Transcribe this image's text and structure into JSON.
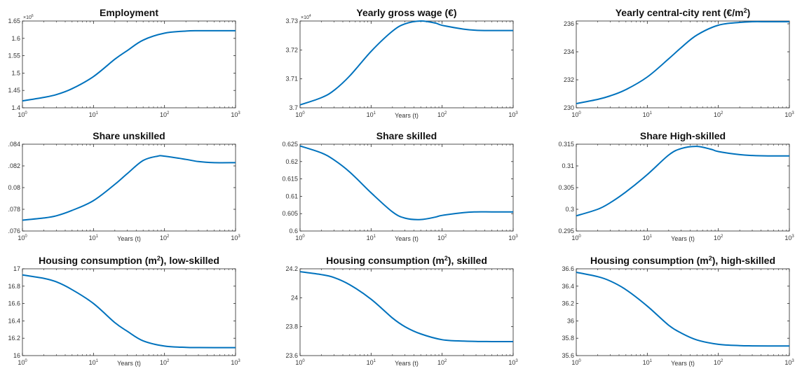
{
  "chart_data": [
    {
      "type": "line",
      "title": "Employment",
      "title_sup": "",
      "title_post": "",
      "xlabel": "",
      "x_scale": "log",
      "xlim": [
        1,
        1000
      ],
      "x_ticks": [
        1,
        10,
        100,
        1000
      ],
      "x_tick_labels": [
        [
          "10",
          "0"
        ],
        [
          "10",
          "1"
        ],
        [
          "10",
          "2"
        ],
        [
          "10",
          "3"
        ]
      ],
      "ylim": [
        1.4,
        1.65
      ],
      "y_ticks": [
        1.4,
        1.45,
        1.5,
        1.55,
        1.6,
        1.65
      ],
      "y_tick_labels": [
        "1.4",
        "1.45",
        "1.5",
        "1.55",
        "1.6",
        "1.65"
      ],
      "y_multiplier": "×10",
      "y_multiplier_exp": "6",
      "color": "#0072BD",
      "x": [
        1,
        2,
        3,
        5,
        10,
        20,
        30,
        50,
        100,
        200,
        300,
        500,
        1000
      ],
      "y": [
        1.42,
        1.43,
        1.438,
        1.455,
        1.49,
        1.54,
        1.565,
        1.595,
        1.615,
        1.621,
        1.622,
        1.622,
        1.622
      ]
    },
    {
      "type": "line",
      "title": "Yearly gross wage (€)",
      "title_sup": "",
      "title_post": "",
      "xlabel": "Years (t)",
      "x_scale": "log",
      "xlim": [
        1,
        1000
      ],
      "x_ticks": [
        1,
        10,
        100,
        1000
      ],
      "x_tick_labels": [
        [
          "10",
          "0"
        ],
        [
          "10",
          "1"
        ],
        [
          "10",
          "2"
        ],
        [
          "10",
          "3"
        ]
      ],
      "ylim": [
        3.7,
        3.73
      ],
      "y_ticks": [
        3.7,
        3.71,
        3.72,
        3.73
      ],
      "y_tick_labels": [
        "3.7",
        "3.71",
        "3.72",
        "3.73"
      ],
      "y_multiplier": "×10",
      "y_multiplier_exp": "4",
      "color": "#0072BD",
      "x": [
        1,
        2,
        3,
        5,
        10,
        20,
        30,
        50,
        80,
        100,
        200,
        300,
        500,
        1000
      ],
      "y": [
        3.701,
        3.7035,
        3.706,
        3.711,
        3.7195,
        3.7265,
        3.729,
        3.73,
        3.7293,
        3.7285,
        3.7272,
        3.7268,
        3.7267,
        3.7267
      ]
    },
    {
      "type": "line",
      "title": "Yearly central-city rent (€/m",
      "title_sup": "2",
      "title_post": ")",
      "xlabel": "",
      "x_scale": "log",
      "xlim": [
        1,
        1000
      ],
      "x_ticks": [
        1,
        10,
        100,
        1000
      ],
      "x_tick_labels": [
        [
          "10",
          "0"
        ],
        [
          "10",
          "1"
        ],
        [
          "10",
          "2"
        ],
        [
          "10",
          "3"
        ]
      ],
      "ylim": [
        230,
        236.2
      ],
      "y_ticks": [
        230,
        232,
        234,
        236
      ],
      "y_tick_labels": [
        "230",
        "232",
        "234",
        "236"
      ],
      "y_multiplier": "",
      "y_multiplier_exp": "",
      "color": "#0072BD",
      "x": [
        1,
        2,
        3,
        5,
        10,
        20,
        30,
        50,
        100,
        200,
        300,
        500,
        1000
      ],
      "y": [
        230.3,
        230.6,
        230.85,
        231.3,
        232.2,
        233.5,
        234.3,
        235.2,
        235.9,
        236.1,
        236.15,
        236.15,
        236.15
      ]
    },
    {
      "type": "line",
      "title": "Share unskilled",
      "title_sup": "",
      "title_post": "",
      "xlabel": "Years (t)",
      "x_scale": "log",
      "xlim": [
        1,
        1000
      ],
      "x_ticks": [
        1,
        10,
        100,
        1000
      ],
      "x_tick_labels": [
        [
          "10",
          "0"
        ],
        [
          "10",
          "1"
        ],
        [
          "10",
          "2"
        ],
        [
          "10",
          "3"
        ]
      ],
      "ylim": [
        0.076,
        0.084
      ],
      "y_ticks": [
        0.076,
        0.078,
        0.08,
        0.082,
        0.084
      ],
      "y_tick_labels": [
        ".076",
        ".078",
        "0.08",
        ".082",
        ".084"
      ],
      "y_multiplier": "",
      "y_multiplier_exp": "",
      "color": "#0072BD",
      "x": [
        1,
        2,
        3,
        5,
        10,
        20,
        30,
        50,
        80,
        100,
        200,
        300,
        500,
        1000
      ],
      "y": [
        0.077,
        0.0772,
        0.0774,
        0.0779,
        0.0788,
        0.0803,
        0.0813,
        0.0825,
        0.0829,
        0.0829,
        0.0826,
        0.0824,
        0.0823,
        0.0823
      ]
    },
    {
      "type": "line",
      "title": "Share skilled",
      "title_sup": "",
      "title_post": "",
      "xlabel": "Years (t)",
      "x_scale": "log",
      "xlim": [
        1,
        1000
      ],
      "x_ticks": [
        1,
        10,
        100,
        1000
      ],
      "x_tick_labels": [
        [
          "10",
          "0"
        ],
        [
          "10",
          "1"
        ],
        [
          "10",
          "2"
        ],
        [
          "10",
          "3"
        ]
      ],
      "ylim": [
        0.6,
        0.625
      ],
      "y_ticks": [
        0.6,
        0.605,
        0.61,
        0.615,
        0.62,
        0.625
      ],
      "y_tick_labels": [
        "0.6",
        "0.605",
        "0.61",
        "0.615",
        "0.62",
        "0.625"
      ],
      "y_multiplier": "",
      "y_multiplier_exp": "",
      "color": "#0072BD",
      "x": [
        1,
        2,
        3,
        5,
        10,
        20,
        30,
        50,
        80,
        100,
        200,
        300,
        500,
        1000
      ],
      "y": [
        0.6245,
        0.6225,
        0.6205,
        0.617,
        0.611,
        0.6055,
        0.6037,
        0.6033,
        0.604,
        0.6045,
        0.6053,
        0.6055,
        0.6055,
        0.6055
      ]
    },
    {
      "type": "line",
      "title": "Share High-skilled",
      "title_sup": "",
      "title_post": "",
      "xlabel": "Years (t)",
      "x_scale": "log",
      "xlim": [
        1,
        1000
      ],
      "x_ticks": [
        1,
        10,
        100,
        1000
      ],
      "x_tick_labels": [
        [
          "10",
          "0"
        ],
        [
          "10",
          "1"
        ],
        [
          "10",
          "2"
        ],
        [
          "10",
          "3"
        ]
      ],
      "ylim": [
        0.295,
        0.315
      ],
      "y_ticks": [
        0.295,
        0.3,
        0.305,
        0.31,
        0.315
      ],
      "y_tick_labels": [
        "0.295",
        "0.3",
        "0.305",
        "0.31",
        "0.315"
      ],
      "y_multiplier": "",
      "y_multiplier_exp": "",
      "color": "#0072BD",
      "x": [
        1,
        2,
        3,
        5,
        10,
        20,
        30,
        50,
        80,
        100,
        200,
        300,
        500,
        1000
      ],
      "y": [
        0.2985,
        0.3,
        0.3015,
        0.304,
        0.308,
        0.3125,
        0.314,
        0.3145,
        0.3138,
        0.3133,
        0.3126,
        0.3124,
        0.3123,
        0.3123
      ]
    },
    {
      "type": "line",
      "title": "Housing consumption (m",
      "title_sup": "2",
      "title_post": "), low-skilled",
      "xlabel": "Years (t)",
      "x_scale": "log",
      "xlim": [
        1,
        1000
      ],
      "x_ticks": [
        1,
        10,
        100,
        1000
      ],
      "x_tick_labels": [
        [
          "10",
          "0"
        ],
        [
          "10",
          "1"
        ],
        [
          "10",
          "2"
        ],
        [
          "10",
          "3"
        ]
      ],
      "ylim": [
        16,
        17
      ],
      "y_ticks": [
        16,
        16.2,
        16.4,
        16.6,
        16.8,
        17
      ],
      "y_tick_labels": [
        "16",
        "16.2",
        "16.4",
        "16.6",
        "16.8",
        "17"
      ],
      "y_multiplier": "",
      "y_multiplier_exp": "",
      "color": "#0072BD",
      "x": [
        1,
        2,
        3,
        5,
        10,
        20,
        30,
        50,
        100,
        200,
        300,
        500,
        1000
      ],
      "y": [
        16.93,
        16.89,
        16.85,
        16.76,
        16.6,
        16.38,
        16.28,
        16.17,
        16.11,
        16.095,
        16.093,
        16.092,
        16.092
      ]
    },
    {
      "type": "line",
      "title": "Housing consumption (m",
      "title_sup": "2",
      "title_post": "), skilled",
      "xlabel": "Years (t)",
      "x_scale": "log",
      "xlim": [
        1,
        1000
      ],
      "x_ticks": [
        1,
        10,
        100,
        1000
      ],
      "x_tick_labels": [
        [
          "10",
          "0"
        ],
        [
          "10",
          "1"
        ],
        [
          "10",
          "2"
        ],
        [
          "10",
          "3"
        ]
      ],
      "ylim": [
        23.6,
        24.2
      ],
      "y_ticks": [
        23.6,
        23.8,
        24,
        24.2
      ],
      "y_tick_labels": [
        "23.6",
        "23.8",
        "24",
        "24.2"
      ],
      "y_multiplier": "",
      "y_multiplier_exp": "",
      "color": "#0072BD",
      "x": [
        1,
        2,
        3,
        5,
        10,
        20,
        30,
        50,
        100,
        200,
        300,
        500,
        1000
      ],
      "y": [
        24.18,
        24.16,
        24.14,
        24.09,
        23.99,
        23.86,
        23.8,
        23.75,
        23.71,
        23.7,
        23.698,
        23.697,
        23.697
      ]
    },
    {
      "type": "line",
      "title": "Housing consumption (m",
      "title_sup": "2",
      "title_post": "), high-skilled",
      "xlabel": "Years (t)",
      "x_scale": "log",
      "xlim": [
        1,
        1000
      ],
      "x_ticks": [
        1,
        10,
        100,
        1000
      ],
      "x_tick_labels": [
        [
          "10",
          "0"
        ],
        [
          "10",
          "1"
        ],
        [
          "10",
          "2"
        ],
        [
          "10",
          "3"
        ]
      ],
      "ylim": [
        35.6,
        36.6
      ],
      "y_ticks": [
        35.6,
        35.8,
        36,
        36.2,
        36.4,
        36.6
      ],
      "y_tick_labels": [
        "35.6",
        "35.8",
        "36",
        "36.2",
        "36.4",
        "36.6"
      ],
      "y_multiplier": "",
      "y_multiplier_exp": "",
      "color": "#0072BD",
      "x": [
        1,
        2,
        3,
        5,
        10,
        20,
        30,
        50,
        100,
        200,
        300,
        500,
        1000
      ],
      "y": [
        36.56,
        36.51,
        36.46,
        36.36,
        36.17,
        35.95,
        35.86,
        35.78,
        35.73,
        35.715,
        35.712,
        35.711,
        35.711
      ]
    }
  ]
}
